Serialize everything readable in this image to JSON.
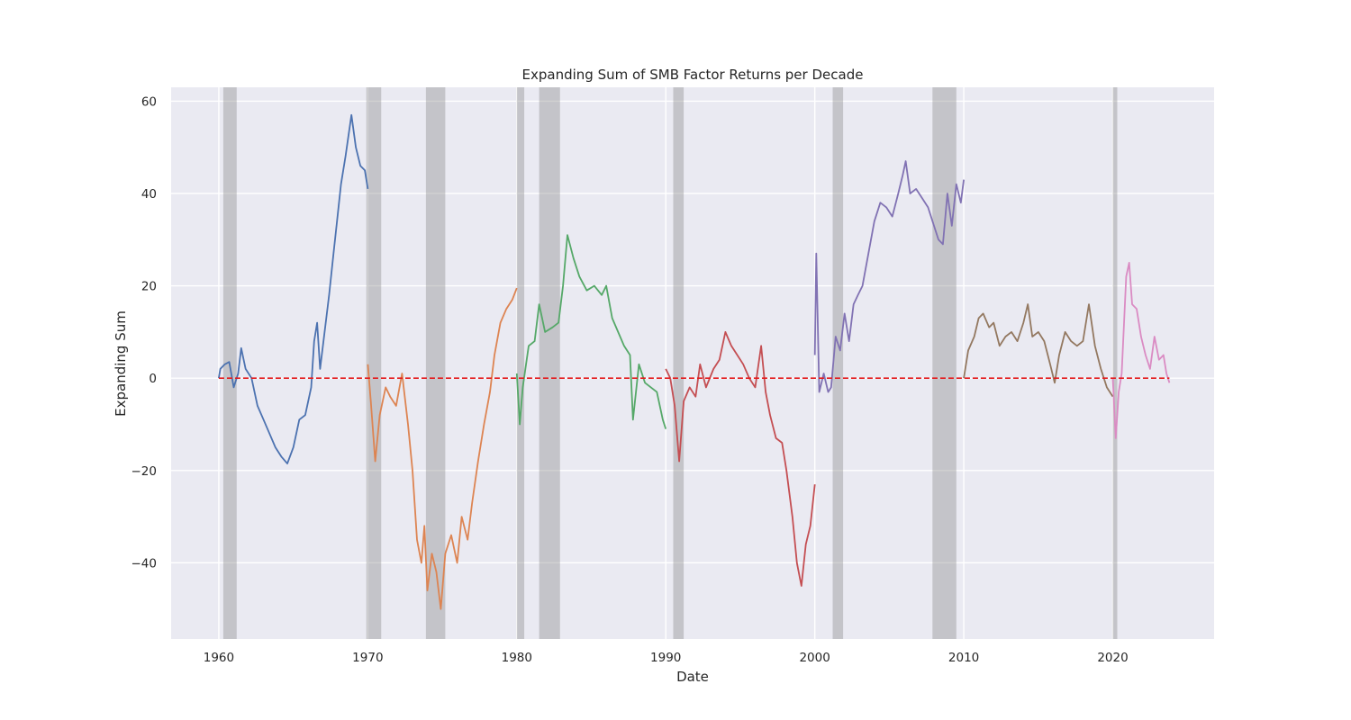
{
  "chart_data": {
    "type": "line",
    "title": "Expanding Sum of SMB Factor Returns per Decade",
    "xlabel": "Date",
    "ylabel": "Expanding Sum",
    "xlim": [
      1956.8,
      2026.8
    ],
    "ylim": [
      -56.5,
      63
    ],
    "x_ticks": [
      1960,
      1970,
      1980,
      1990,
      2000,
      2010,
      2020
    ],
    "x_tick_labels": [
      "1960",
      "1970",
      "1980",
      "1990",
      "2000",
      "2010",
      "2020"
    ],
    "y_ticks": [
      60,
      40,
      20,
      0,
      -20,
      -40
    ],
    "y_tick_labels": [
      "60",
      "40",
      "20",
      "0",
      "−20",
      "−40"
    ],
    "grid": true,
    "background": "#eaeaf2",
    "reference_line": {
      "y": 0,
      "x_range": [
        1960.0,
        2023.8
      ],
      "color": "#e41a1c",
      "style": "dashed"
    },
    "recession_bands": [
      [
        1960.3,
        1961.2
      ],
      [
        1969.9,
        1970.9
      ],
      [
        1973.9,
        1975.2
      ],
      [
        1980.0,
        1980.5
      ],
      [
        1981.5,
        1982.9
      ],
      [
        1990.5,
        1991.2
      ],
      [
        2001.2,
        2001.9
      ],
      [
        2007.9,
        2009.5
      ],
      [
        2020.0,
        2020.3
      ]
    ],
    "recession_color": "#8c8c8c",
    "series": [
      {
        "color": "#4c72b0",
        "points": [
          [
            1960.0,
            0
          ],
          [
            1960.1,
            2
          ],
          [
            1960.4,
            3
          ],
          [
            1960.7,
            3.5
          ],
          [
            1961.0,
            -2
          ],
          [
            1961.3,
            1
          ],
          [
            1961.5,
            6.5
          ],
          [
            1961.8,
            2
          ],
          [
            1962.2,
            0
          ],
          [
            1962.6,
            -6
          ],
          [
            1963.0,
            -9
          ],
          [
            1963.4,
            -12
          ],
          [
            1963.8,
            -15
          ],
          [
            1964.2,
            -17
          ],
          [
            1964.6,
            -18.5
          ],
          [
            1965.0,
            -15
          ],
          [
            1965.4,
            -9
          ],
          [
            1965.8,
            -8
          ],
          [
            1966.2,
            -2
          ],
          [
            1966.4,
            8
          ],
          [
            1966.6,
            12
          ],
          [
            1966.8,
            2
          ],
          [
            1967.1,
            10
          ],
          [
            1967.4,
            18
          ],
          [
            1967.7,
            27
          ],
          [
            1968.0,
            36
          ],
          [
            1968.2,
            42
          ],
          [
            1968.5,
            48
          ],
          [
            1968.9,
            57
          ],
          [
            1969.2,
            50
          ],
          [
            1969.5,
            46
          ],
          [
            1969.8,
            45
          ],
          [
            1970.0,
            41
          ]
        ]
      },
      {
        "color": "#dd8452",
        "points": [
          [
            1970.0,
            3
          ],
          [
            1970.2,
            -5
          ],
          [
            1970.5,
            -18
          ],
          [
            1970.8,
            -8
          ],
          [
            1971.2,
            -2
          ],
          [
            1971.5,
            -4
          ],
          [
            1971.9,
            -6
          ],
          [
            1972.3,
            1
          ],
          [
            1972.7,
            -10
          ],
          [
            1973.0,
            -20
          ],
          [
            1973.3,
            -35
          ],
          [
            1973.6,
            -40
          ],
          [
            1973.8,
            -32
          ],
          [
            1974.0,
            -46
          ],
          [
            1974.3,
            -38
          ],
          [
            1974.6,
            -42
          ],
          [
            1974.9,
            -50
          ],
          [
            1975.2,
            -38
          ],
          [
            1975.6,
            -34
          ],
          [
            1976.0,
            -40
          ],
          [
            1976.3,
            -30
          ],
          [
            1976.7,
            -35
          ],
          [
            1977.0,
            -27
          ],
          [
            1977.4,
            -18
          ],
          [
            1977.8,
            -10
          ],
          [
            1978.2,
            -3
          ],
          [
            1978.5,
            5
          ],
          [
            1978.9,
            12
          ],
          [
            1979.3,
            15
          ],
          [
            1979.7,
            17
          ],
          [
            1980.0,
            19.5
          ]
        ]
      },
      {
        "color": "#55a868",
        "points": [
          [
            1980.0,
            1
          ],
          [
            1980.2,
            -10
          ],
          [
            1980.4,
            -2
          ],
          [
            1980.8,
            7
          ],
          [
            1981.2,
            8
          ],
          [
            1981.5,
            16
          ],
          [
            1981.9,
            10
          ],
          [
            1982.4,
            11
          ],
          [
            1982.8,
            12
          ],
          [
            1983.1,
            20
          ],
          [
            1983.4,
            31
          ],
          [
            1983.8,
            26
          ],
          [
            1984.2,
            22
          ],
          [
            1984.7,
            19
          ],
          [
            1985.2,
            20
          ],
          [
            1985.7,
            18
          ],
          [
            1986.0,
            20
          ],
          [
            1986.4,
            13
          ],
          [
            1986.8,
            10
          ],
          [
            1987.2,
            7
          ],
          [
            1987.6,
            5
          ],
          [
            1987.8,
            -9
          ],
          [
            1988.2,
            3
          ],
          [
            1988.6,
            -1
          ],
          [
            1989.0,
            -2
          ],
          [
            1989.4,
            -3
          ],
          [
            1989.8,
            -9
          ],
          [
            1990.0,
            -11
          ]
        ]
      },
      {
        "color": "#c44e52",
        "points": [
          [
            1990.0,
            2
          ],
          [
            1990.3,
            0
          ],
          [
            1990.6,
            -6
          ],
          [
            1990.9,
            -18
          ],
          [
            1991.2,
            -5
          ],
          [
            1991.6,
            -2
          ],
          [
            1992.0,
            -4
          ],
          [
            1992.3,
            3
          ],
          [
            1992.7,
            -2
          ],
          [
            1993.2,
            2
          ],
          [
            1993.6,
            4
          ],
          [
            1994.0,
            10
          ],
          [
            1994.4,
            7
          ],
          [
            1994.8,
            5
          ],
          [
            1995.2,
            3
          ],
          [
            1995.6,
            0
          ],
          [
            1996.0,
            -2
          ],
          [
            1996.4,
            7
          ],
          [
            1996.7,
            -3
          ],
          [
            1997.0,
            -8
          ],
          [
            1997.4,
            -13
          ],
          [
            1997.8,
            -14
          ],
          [
            1998.1,
            -20
          ],
          [
            1998.5,
            -30
          ],
          [
            1998.8,
            -40
          ],
          [
            1999.1,
            -45
          ],
          [
            1999.4,
            -36
          ],
          [
            1999.7,
            -32
          ],
          [
            2000.0,
            -23
          ]
        ]
      },
      {
        "color": "#8172b3",
        "points": [
          [
            2000.0,
            5
          ],
          [
            2000.1,
            27
          ],
          [
            2000.3,
            -3
          ],
          [
            2000.6,
            1
          ],
          [
            2000.9,
            -3
          ],
          [
            2001.1,
            -2
          ],
          [
            2001.4,
            9
          ],
          [
            2001.7,
            6
          ],
          [
            2002.0,
            14
          ],
          [
            2002.3,
            8
          ],
          [
            2002.6,
            16
          ],
          [
            2002.9,
            18
          ],
          [
            2003.2,
            20
          ],
          [
            2003.6,
            27
          ],
          [
            2004.0,
            34
          ],
          [
            2004.4,
            38
          ],
          [
            2004.8,
            37
          ],
          [
            2005.2,
            35
          ],
          [
            2005.6,
            40
          ],
          [
            2005.9,
            44
          ],
          [
            2006.1,
            47
          ],
          [
            2006.4,
            40
          ],
          [
            2006.8,
            41
          ],
          [
            2007.2,
            39
          ],
          [
            2007.6,
            37
          ],
          [
            2008.0,
            33
          ],
          [
            2008.3,
            30
          ],
          [
            2008.6,
            29
          ],
          [
            2008.9,
            40
          ],
          [
            2009.2,
            33
          ],
          [
            2009.5,
            42
          ],
          [
            2009.8,
            38
          ],
          [
            2010.0,
            43
          ]
        ]
      },
      {
        "color": "#937860",
        "points": [
          [
            2010.0,
            0
          ],
          [
            2010.3,
            6
          ],
          [
            2010.7,
            9
          ],
          [
            2011.0,
            13
          ],
          [
            2011.3,
            14
          ],
          [
            2011.7,
            11
          ],
          [
            2012.0,
            12
          ],
          [
            2012.4,
            7
          ],
          [
            2012.8,
            9
          ],
          [
            2013.2,
            10
          ],
          [
            2013.6,
            8
          ],
          [
            2014.0,
            12
          ],
          [
            2014.3,
            16
          ],
          [
            2014.6,
            9
          ],
          [
            2015.0,
            10
          ],
          [
            2015.4,
            8
          ],
          [
            2015.8,
            3
          ],
          [
            2016.1,
            -1
          ],
          [
            2016.4,
            5
          ],
          [
            2016.8,
            10
          ],
          [
            2017.2,
            8
          ],
          [
            2017.6,
            7
          ],
          [
            2018.0,
            8
          ],
          [
            2018.4,
            16
          ],
          [
            2018.8,
            7
          ],
          [
            2019.2,
            2
          ],
          [
            2019.6,
            -2
          ],
          [
            2020.0,
            -4
          ]
        ]
      },
      {
        "color": "#da8bc3",
        "points": [
          [
            2020.0,
            0
          ],
          [
            2020.2,
            -13
          ],
          [
            2020.4,
            -3
          ],
          [
            2020.6,
            1
          ],
          [
            2020.9,
            22
          ],
          [
            2021.1,
            25
          ],
          [
            2021.3,
            16
          ],
          [
            2021.6,
            15
          ],
          [
            2021.9,
            9
          ],
          [
            2022.2,
            5
          ],
          [
            2022.5,
            2
          ],
          [
            2022.8,
            9
          ],
          [
            2023.1,
            4
          ],
          [
            2023.4,
            5
          ],
          [
            2023.6,
            1
          ],
          [
            2023.8,
            -1
          ]
        ]
      }
    ]
  }
}
